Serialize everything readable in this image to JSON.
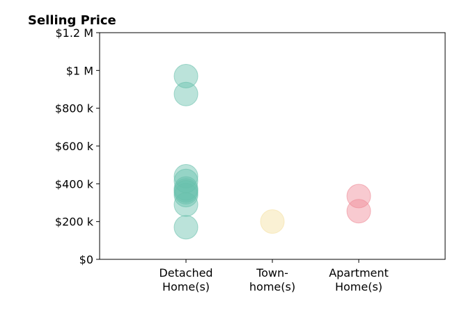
{
  "chart_data": {
    "type": "scatter",
    "title": "Selling Price",
    "xlabel": "",
    "ylabel": "",
    "categories": [
      [
        "Detached",
        "Home(s)"
      ],
      [
        "Town-",
        "home(s)"
      ],
      [
        "Apartment",
        "Home(s)"
      ]
    ],
    "xlim": [
      -1,
      3
    ],
    "ylim": [
      0,
      1200000
    ],
    "yticks": [
      0,
      200000,
      400000,
      600000,
      800000,
      1000000,
      1200000
    ],
    "ytick_labels": [
      "$0",
      "$200 k",
      "$400 k",
      "$600 k",
      "$800 k",
      "$1 M",
      "$1.2 M"
    ],
    "grid": false,
    "legend": "none",
    "series": [
      {
        "category": 0,
        "color": "#69c0ac",
        "values": [
          970000,
          875000,
          440000,
          415000,
          375000,
          365000,
          355000,
          340000,
          290000,
          170000
        ]
      },
      {
        "category": 1,
        "color": "#f5dfa0",
        "values": [
          200000
        ]
      },
      {
        "category": 2,
        "color": "#ef8a96",
        "values": [
          335000,
          255000
        ]
      }
    ]
  }
}
